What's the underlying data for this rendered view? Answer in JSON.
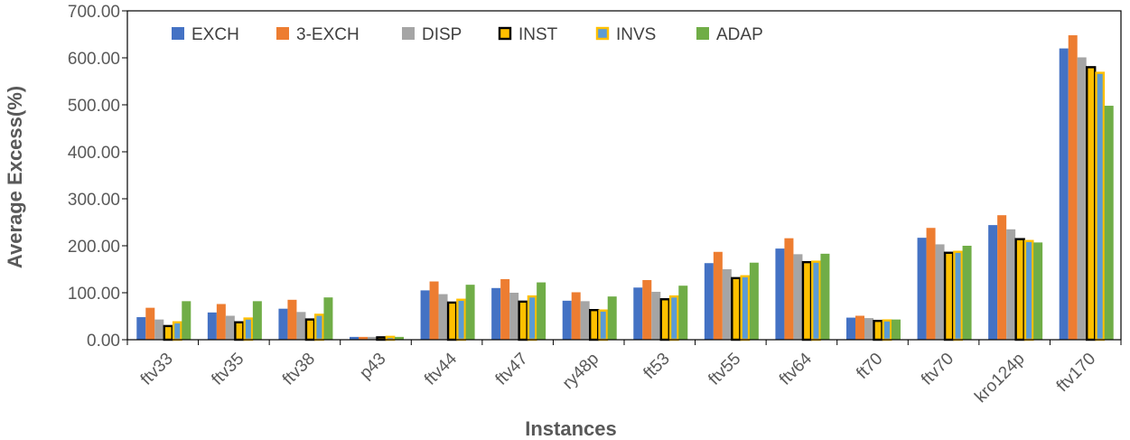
{
  "chart_data": {
    "type": "bar",
    "xlabel": "Instances",
    "ylabel": "Average Excess(%)",
    "ylim": [
      0,
      700
    ],
    "yticks": [
      "0.00",
      "100.00",
      "200.00",
      "300.00",
      "400.00",
      "500.00",
      "600.00",
      "700.00"
    ],
    "grid": false,
    "legend_position": "top",
    "categories": [
      "ftv33",
      "ftv35",
      "ftv38",
      "p43",
      "ftv44",
      "ftv47",
      "ry48p",
      "ft53",
      "ftv55",
      "ftv64",
      "ft70",
      "ftv70",
      "kro124p",
      "ftv170"
    ],
    "series": [
      {
        "name": "EXCH",
        "color": "#4472C4",
        "style": "solid",
        "values": [
          48,
          58,
          66,
          6,
          105,
          110,
          83,
          111,
          163,
          194,
          47,
          217,
          244,
          620
        ]
      },
      {
        "name": "3-EXCH",
        "color": "#ED7D31",
        "style": "solid",
        "values": [
          68,
          76,
          85,
          6,
          124,
          129,
          101,
          127,
          187,
          216,
          51,
          238,
          265,
          648
        ]
      },
      {
        "name": "DISP",
        "color": "#A5A5A5",
        "style": "solid",
        "values": [
          43,
          51,
          59,
          6,
          97,
          100,
          82,
          102,
          150,
          182,
          46,
          203,
          235,
          601
        ]
      },
      {
        "name": "INST",
        "color": "#FFC000",
        "style": "outlined-black",
        "values": [
          31,
          39,
          45,
          7,
          81,
          83,
          65,
          88,
          133,
          167,
          42,
          187,
          216,
          582
        ]
      },
      {
        "name": "INVS",
        "color": "#5B9BD5",
        "style": "outlined-gold",
        "values": [
          39,
          47,
          55,
          8,
          87,
          94,
          64,
          94,
          137,
          168,
          43,
          189,
          212,
          570
        ]
      },
      {
        "name": "ADAP",
        "color": "#70AD47",
        "style": "solid",
        "values": [
          82,
          82,
          90,
          6,
          117,
          122,
          92,
          115,
          164,
          183,
          43,
          200,
          207,
          498
        ]
      }
    ]
  }
}
